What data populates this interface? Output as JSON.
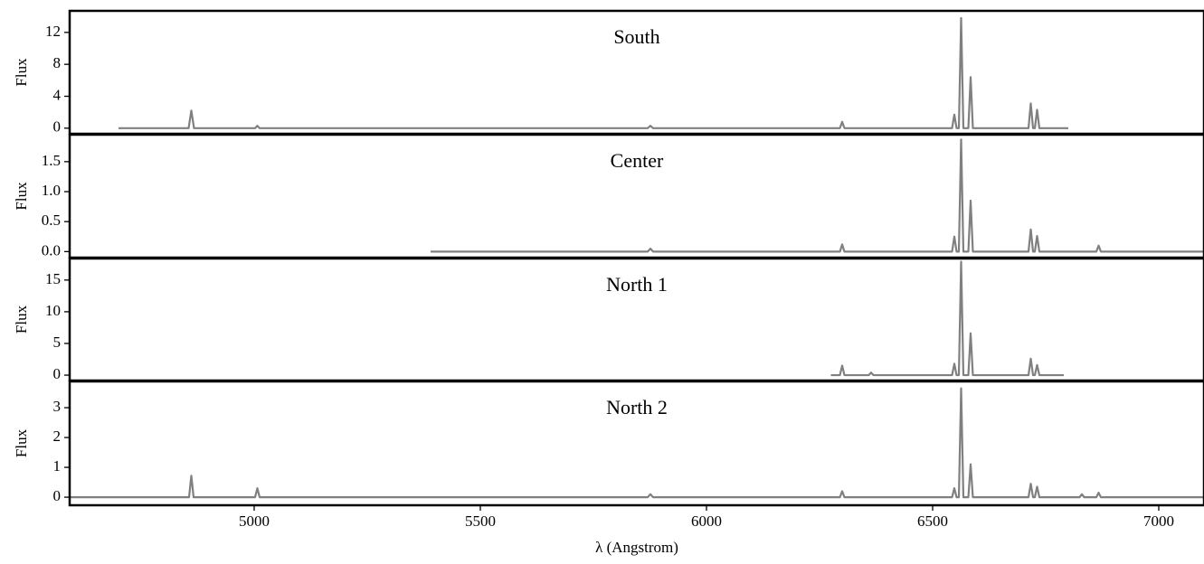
{
  "chart_data": [
    {
      "type": "line",
      "title": "South",
      "ylabel": "Flux",
      "color": "#808080",
      "x": [
        4700,
        4855,
        4861,
        4867,
        5002,
        5007,
        5012,
        5870,
        5876,
        5882,
        6295,
        6300,
        6305,
        6543,
        6548,
        6553,
        6558,
        6563,
        6568,
        6579,
        6584,
        6589,
        6712,
        6717,
        6722,
        6726,
        6731,
        6736,
        6800
      ],
      "values": [
        0,
        0,
        2.2,
        0,
        0,
        0.3,
        0,
        0,
        0.3,
        0,
        0,
        0.8,
        0,
        0,
        1.7,
        0,
        0,
        13.8,
        0,
        0,
        6.4,
        0,
        0,
        3.1,
        0,
        0,
        2.3,
        0,
        0
      ],
      "xlim": [
        4592,
        7100
      ],
      "ylim": [
        -0.7,
        14.7
      ],
      "yticks": [
        0,
        4,
        8,
        12
      ]
    },
    {
      "type": "line",
      "title": "Center",
      "ylabel": "Flux",
      "color": "#808080",
      "x": [
        5390,
        5870,
        5876,
        5882,
        6295,
        6300,
        6305,
        6543,
        6548,
        6553,
        6558,
        6563,
        6568,
        6579,
        6584,
        6589,
        6712,
        6717,
        6722,
        6726,
        6731,
        6736,
        6862,
        6867,
        6872,
        7100
      ],
      "values": [
        0,
        0,
        0.05,
        0,
        0,
        0.12,
        0,
        0,
        0.25,
        0,
        0,
        1.87,
        0,
        0,
        0.85,
        0,
        0,
        0.37,
        0,
        0,
        0.26,
        0,
        0,
        0.1,
        0,
        0
      ],
      "xlim": [
        4592,
        7100
      ],
      "ylim": [
        -0.1,
        1.95
      ],
      "yticks": [
        {
          "value": 0,
          "label": "0.0"
        },
        0.5,
        {
          "value": 1,
          "label": "1.0"
        },
        1.5
      ]
    },
    {
      "type": "line",
      "title": "North 1",
      "ylabel": "Flux",
      "color": "#808080",
      "x": [
        6275,
        6295,
        6300,
        6305,
        6359,
        6364,
        6369,
        6543,
        6548,
        6553,
        6558,
        6563,
        6568,
        6579,
        6584,
        6589,
        6712,
        6717,
        6722,
        6726,
        6731,
        6736,
        6790
      ],
      "values": [
        0,
        0,
        1.5,
        0,
        0,
        0.4,
        0,
        0,
        1.8,
        0,
        0,
        17.9,
        0,
        0,
        6.6,
        0,
        0,
        2.6,
        0,
        0,
        1.6,
        0,
        0
      ],
      "xlim": [
        4592,
        7100
      ],
      "ylim": [
        -0.85,
        18.4
      ],
      "yticks": [
        0,
        5,
        10,
        15
      ]
    },
    {
      "type": "line",
      "title": "North 2",
      "ylabel": "Flux",
      "color": "#808080",
      "xlabel": "λ (Angstrom)",
      "x": [
        4592,
        4856,
        4861,
        4866,
        5002,
        5007,
        5012,
        5870,
        5876,
        5882,
        6295,
        6300,
        6305,
        6543,
        6548,
        6553,
        6558,
        6563,
        6568,
        6579,
        6584,
        6589,
        6712,
        6717,
        6722,
        6726,
        6731,
        6736,
        6825,
        6830,
        6835,
        6862,
        6867,
        6872,
        7100
      ],
      "values": [
        0,
        0,
        0.72,
        0,
        0,
        0.3,
        0,
        0,
        0.1,
        0,
        0,
        0.2,
        0,
        0,
        0.3,
        0,
        0,
        3.65,
        0,
        0,
        1.1,
        0,
        0,
        0.45,
        0,
        0,
        0.35,
        0,
        0,
        0.1,
        0,
        0,
        0.15,
        0,
        0
      ],
      "xlim": [
        4592,
        7100
      ],
      "ylim": [
        -0.27,
        3.88
      ],
      "yticks": [
        0,
        1,
        2,
        3
      ],
      "xticks": [
        5000,
        5500,
        6000,
        6500,
        7000
      ]
    }
  ]
}
